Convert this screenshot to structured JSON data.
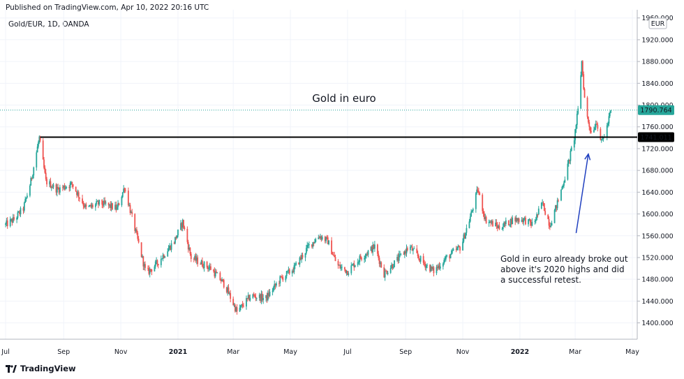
{
  "header": {
    "published": "Published on TradingView.com, Apr 10, 2022 20:16 UTC",
    "symbol": "Gold/EUR, 1D, OANDA",
    "currency_badge": "EUR"
  },
  "footer": {
    "brand": "TradingView",
    "brand_icon": "tradingview-logo-icon"
  },
  "colors": {
    "up": "#26a69a",
    "down": "#ef5350",
    "price_label": "#26a69a",
    "level_label": "#000000",
    "arrow": "#1f3fbf"
  },
  "chart_data": {
    "type": "candlestick",
    "title": "Gold in euro",
    "x_tick_labels": [
      "Jul",
      "Sep",
      "Nov",
      "2021",
      "Mar",
      "May",
      "Jul",
      "Sep",
      "Nov",
      "2022",
      "Mar",
      "May"
    ],
    "x_tick_dates": [
      "2020-07-01",
      "2020-09-01",
      "2020-11-01",
      "2021-01-01",
      "2021-03-01",
      "2021-05-01",
      "2021-07-01",
      "2021-09-01",
      "2021-11-01",
      "2022-01-01",
      "2022-03-01",
      "2022-05-01"
    ],
    "x_range": [
      "2020-07-01",
      "2022-05-01"
    ],
    "y_tick_values": [
      1400,
      1440,
      1480,
      1520,
      1560,
      1600,
      1640,
      1680,
      1720,
      1760,
      1800,
      1840,
      1880,
      1920,
      1960
    ],
    "y_tick_labels": [
      "1400.000",
      "1440.000",
      "1480.000",
      "1520.000",
      "1560.000",
      "1600.000",
      "1640.000",
      "1680.000",
      "1720.000",
      "1760.000",
      "1800.000",
      "1840.000",
      "1880.000",
      "1920.000",
      "1960.000"
    ],
    "ylim": [
      1370,
      1975
    ],
    "scale_currency": "EUR",
    "last_price": {
      "value": 1790.764,
      "label": "1790.764"
    },
    "horizontal_level": {
      "value": 1741.011,
      "label": "1741.011",
      "from": "2020-08-07"
    },
    "annotation": {
      "lines": [
        "Gold in euro already broke out",
        "above it's 2020 highs and did",
        "a successful retest."
      ],
      "arrow_from": {
        "date": "2022-03-02",
        "value": 1565
      },
      "arrow_to": {
        "date": "2022-03-15",
        "value": 1710
      }
    },
    "price_path": [
      {
        "date": "2020-07-01",
        "value": 1580
      },
      {
        "date": "2020-07-10",
        "value": 1590
      },
      {
        "date": "2020-07-20",
        "value": 1610
      },
      {
        "date": "2020-07-28",
        "value": 1660
      },
      {
        "date": "2020-08-06",
        "value": 1740
      },
      {
        "date": "2020-08-13",
        "value": 1660
      },
      {
        "date": "2020-08-25",
        "value": 1645
      },
      {
        "date": "2020-09-10",
        "value": 1655
      },
      {
        "date": "2020-09-25",
        "value": 1610
      },
      {
        "date": "2020-10-10",
        "value": 1620
      },
      {
        "date": "2020-10-28",
        "value": 1610
      },
      {
        "date": "2020-11-05",
        "value": 1650
      },
      {
        "date": "2020-11-12",
        "value": 1600
      },
      {
        "date": "2020-11-28",
        "value": 1490
      },
      {
        "date": "2020-12-10",
        "value": 1510
      },
      {
        "date": "2020-12-28",
        "value": 1550
      },
      {
        "date": "2021-01-06",
        "value": 1585
      },
      {
        "date": "2021-01-15",
        "value": 1520
      },
      {
        "date": "2021-02-05",
        "value": 1500
      },
      {
        "date": "2021-02-20",
        "value": 1470
      },
      {
        "date": "2021-03-05",
        "value": 1420
      },
      {
        "date": "2021-03-20",
        "value": 1450
      },
      {
        "date": "2021-04-05",
        "value": 1445
      },
      {
        "date": "2021-04-20",
        "value": 1480
      },
      {
        "date": "2021-05-05",
        "value": 1500
      },
      {
        "date": "2021-05-20",
        "value": 1540
      },
      {
        "date": "2021-06-01",
        "value": 1560
      },
      {
        "date": "2021-06-10",
        "value": 1550
      },
      {
        "date": "2021-06-20",
        "value": 1505
      },
      {
        "date": "2021-07-01",
        "value": 1495
      },
      {
        "date": "2021-07-15",
        "value": 1520
      },
      {
        "date": "2021-07-30",
        "value": 1540
      },
      {
        "date": "2021-08-09",
        "value": 1490
      },
      {
        "date": "2021-08-20",
        "value": 1510
      },
      {
        "date": "2021-09-05",
        "value": 1540
      },
      {
        "date": "2021-09-20",
        "value": 1510
      },
      {
        "date": "2021-10-01",
        "value": 1495
      },
      {
        "date": "2021-10-15",
        "value": 1520
      },
      {
        "date": "2021-10-30",
        "value": 1540
      },
      {
        "date": "2021-11-10",
        "value": 1600
      },
      {
        "date": "2021-11-17",
        "value": 1645
      },
      {
        "date": "2021-11-25",
        "value": 1590
      },
      {
        "date": "2021-12-10",
        "value": 1575
      },
      {
        "date": "2021-12-25",
        "value": 1590
      },
      {
        "date": "2022-01-05",
        "value": 1590
      },
      {
        "date": "2022-01-15",
        "value": 1580
      },
      {
        "date": "2022-01-25",
        "value": 1620
      },
      {
        "date": "2022-02-02",
        "value": 1580
      },
      {
        "date": "2022-02-10",
        "value": 1620
      },
      {
        "date": "2022-02-20",
        "value": 1680
      },
      {
        "date": "2022-02-28",
        "value": 1740
      },
      {
        "date": "2022-03-04",
        "value": 1790
      },
      {
        "date": "2022-03-08",
        "value": 1880
      },
      {
        "date": "2022-03-12",
        "value": 1790
      },
      {
        "date": "2022-03-18",
        "value": 1750
      },
      {
        "date": "2022-03-24",
        "value": 1770
      },
      {
        "date": "2022-03-29",
        "value": 1730
      },
      {
        "date": "2022-04-04",
        "value": 1760
      },
      {
        "date": "2022-04-08",
        "value": 1790
      }
    ]
  }
}
